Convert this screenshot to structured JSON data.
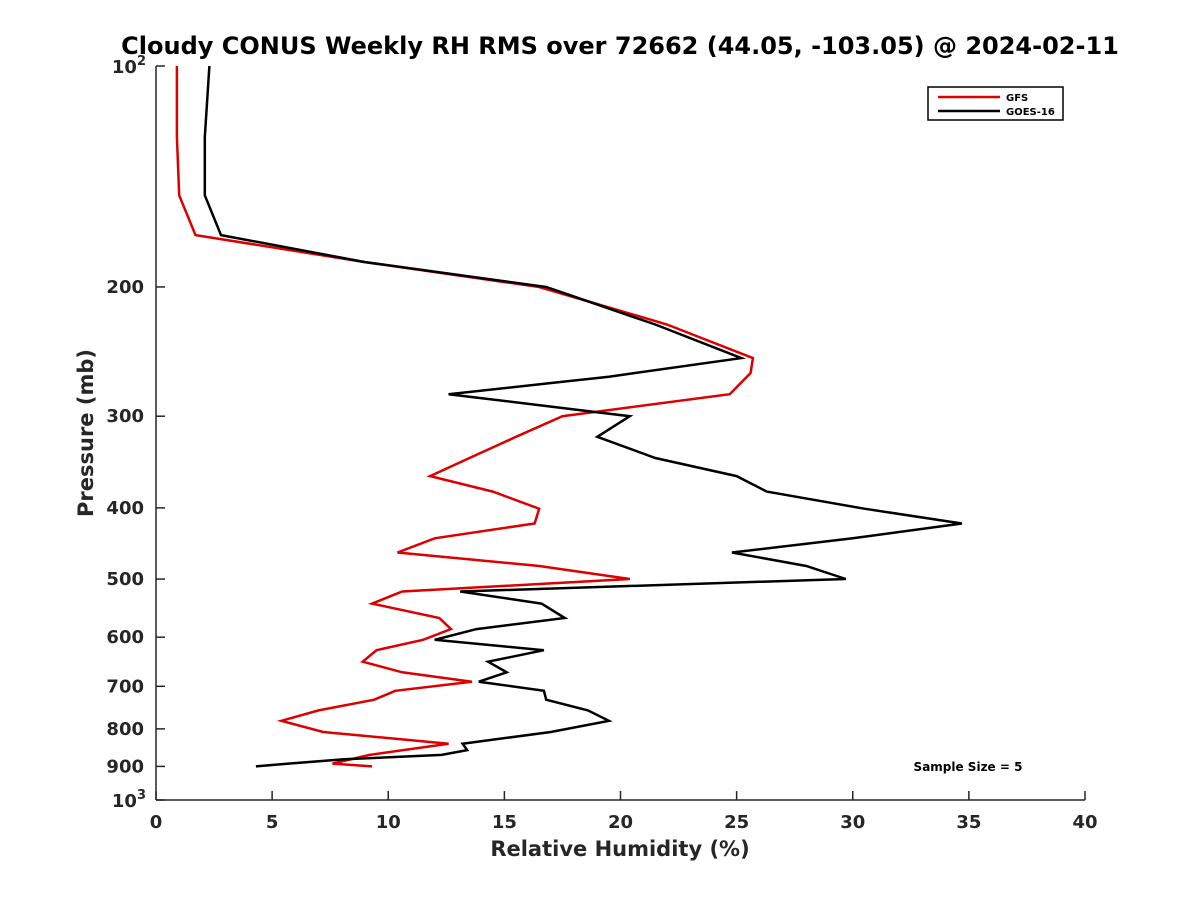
{
  "chart_data": {
    "type": "line",
    "title": "Cloudy CONUS Weekly RH RMS over 72662 (44.05, -103.05) @ 2024-02-11",
    "xlabel": "Relative Humidity (%)",
    "ylabel": "Pressure (mb)",
    "xlim": [
      0,
      40
    ],
    "ylim": [
      100,
      1000
    ],
    "y_scale": "log",
    "y_reversed": true,
    "grid": false,
    "legend_position": "top-right",
    "x_ticks": [
      0,
      5,
      10,
      15,
      20,
      25,
      30,
      35,
      40
    ],
    "x_tick_labels": [
      "0",
      "5",
      "10",
      "15",
      "20",
      "25",
      "30",
      "35",
      "40"
    ],
    "y_ticks": [
      200,
      300,
      400,
      500,
      600,
      700,
      800,
      900
    ],
    "y_tick_labels": [
      "200",
      "300",
      "400",
      "500",
      "600",
      "700",
      "800",
      "900"
    ],
    "y_decade_labels": [
      {
        "value": 100,
        "base": "10",
        "exp": "2"
      },
      {
        "value": 1000,
        "base": "10",
        "exp": "3"
      }
    ],
    "annotation": "Sample Size = 5",
    "series": [
      {
        "name": "GFS",
        "color": "#dd0000",
        "points": [
          [
            0.9,
            100
          ],
          [
            0.9,
            125
          ],
          [
            1.0,
            150
          ],
          [
            1.7,
            170
          ],
          [
            9.0,
            185
          ],
          [
            16.5,
            200
          ],
          [
            22.0,
            225
          ],
          [
            25.7,
            250
          ],
          [
            25.6,
            262
          ],
          [
            24.7,
            280
          ],
          [
            17.5,
            300
          ],
          [
            15.5,
            320
          ],
          [
            13.5,
            342
          ],
          [
            11.8,
            362
          ],
          [
            14.5,
            380
          ],
          [
            16.5,
            401
          ],
          [
            16.3,
            420
          ],
          [
            12.0,
            440
          ],
          [
            10.4,
            460
          ],
          [
            16.5,
            480
          ],
          [
            20.4,
            500
          ],
          [
            10.6,
            520
          ],
          [
            9.3,
            540
          ],
          [
            12.2,
            565
          ],
          [
            12.7,
            585
          ],
          [
            11.5,
            605
          ],
          [
            9.5,
            625
          ],
          [
            8.9,
            648
          ],
          [
            10.6,
            670
          ],
          [
            13.6,
            690
          ],
          [
            10.3,
            710
          ],
          [
            9.4,
            730
          ],
          [
            7.0,
            755
          ],
          [
            5.4,
            780
          ],
          [
            7.2,
            808
          ],
          [
            12.6,
            838
          ],
          [
            9.2,
            868
          ],
          [
            7.6,
            892
          ],
          [
            9.3,
            900
          ]
        ]
      },
      {
        "name": "GOES-16",
        "color": "#000000",
        "points": [
          [
            2.3,
            100
          ],
          [
            2.1,
            125
          ],
          [
            2.1,
            150
          ],
          [
            2.8,
            170
          ],
          [
            9.0,
            185
          ],
          [
            16.8,
            200
          ],
          [
            21.5,
            225
          ],
          [
            25.2,
            250
          ],
          [
            19.5,
            265
          ],
          [
            12.6,
            280
          ],
          [
            20.4,
            300
          ],
          [
            19.0,
            320
          ],
          [
            21.5,
            342
          ],
          [
            25.0,
            362
          ],
          [
            26.3,
            380
          ],
          [
            30.5,
            401
          ],
          [
            34.7,
            420
          ],
          [
            30.0,
            440
          ],
          [
            24.8,
            460
          ],
          [
            28.0,
            480
          ],
          [
            29.7,
            500
          ],
          [
            13.1,
            520
          ],
          [
            16.6,
            540
          ],
          [
            17.6,
            565
          ],
          [
            13.8,
            585
          ],
          [
            12.0,
            605
          ],
          [
            16.7,
            625
          ],
          [
            14.3,
            648
          ],
          [
            15.1,
            670
          ],
          [
            13.9,
            690
          ],
          [
            16.7,
            710
          ],
          [
            16.8,
            730
          ],
          [
            18.6,
            755
          ],
          [
            19.5,
            780
          ],
          [
            17.0,
            808
          ],
          [
            13.2,
            838
          ],
          [
            13.4,
            855
          ],
          [
            12.3,
            868
          ],
          [
            8.1,
            880
          ],
          [
            5.7,
            892
          ],
          [
            4.3,
            900
          ]
        ]
      }
    ]
  }
}
